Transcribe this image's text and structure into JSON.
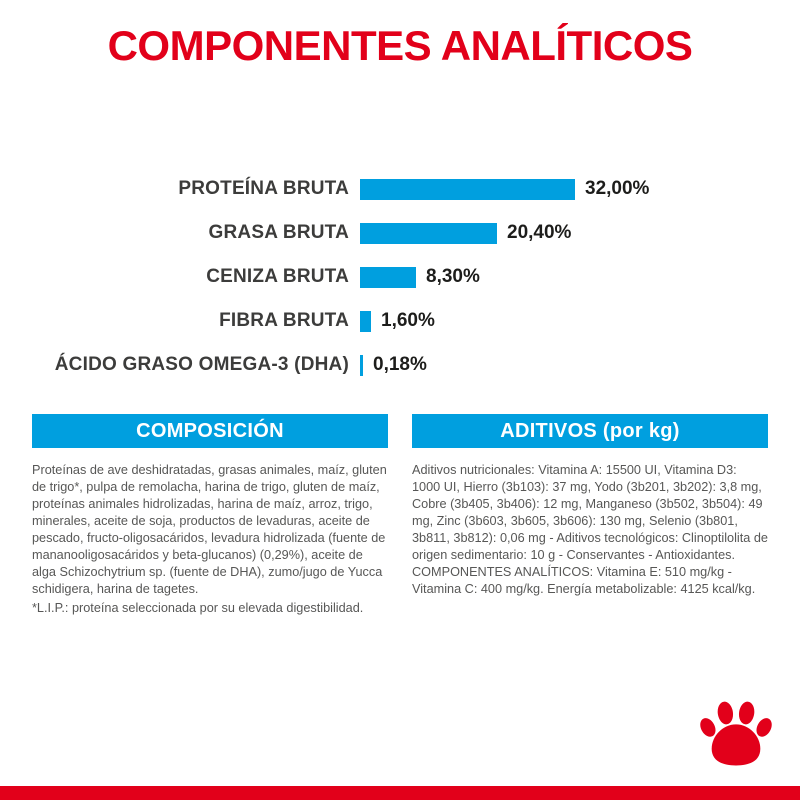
{
  "title": "COMPONENTES ANALÍTICOS",
  "colors": {
    "red": "#E2001A",
    "blue": "#009FDF",
    "label_dark": "#3C3C3B",
    "text_gray": "#575756"
  },
  "chart_data": {
    "type": "bar",
    "orientation": "horizontal",
    "title": "COMPONENTES ANALÍTICOS",
    "categories": [
      "PROTEÍNA BRUTA",
      "GRASA BRUTA",
      "CENIZA BRUTA",
      "FIBRA BRUTA",
      "ÁCIDO GRASO OMEGA-3 (DHA)"
    ],
    "values": [
      32.0,
      20.4,
      8.3,
      1.6,
      0.18
    ],
    "value_labels": [
      "32,00%",
      "20,40%",
      "8,30%",
      "1,60%",
      "0,18%"
    ],
    "unit": "%",
    "xlim": [
      0,
      32
    ],
    "bar_color": "#009FDF",
    "grid": false,
    "legend": false
  },
  "composition": {
    "header": "COMPOSICIÓN",
    "body": "Proteínas de ave deshidratadas, grasas animales, maíz, gluten de trigo*, pulpa de remolacha, harina de trigo, gluten de maíz, proteínas animales hidrolizadas, harina de maíz, arroz, trigo, minerales, aceite de soja, productos de levaduras, aceite de pescado, fructo-oligosacáridos, levadura hidrolizada (fuente de mananooligosacáridos y beta-glucanos) (0,29%), aceite de alga Schizochytrium sp. (fuente de DHA), zumo/jugo de Yucca schidigera, harina de tagetes.",
    "footnote": "*L.I.P.: proteína seleccionada por su elevada digestibilidad."
  },
  "additives": {
    "header": "ADITIVOS (por kg)",
    "body": "Aditivos nutricionales: Vitamina A: 15500 UI, Vitamina D3: 1000 UI, Hierro (3b103): 37 mg, Yodo (3b201, 3b202): 3,8 mg, Cobre (3b405, 3b406): 12 mg, Manganeso (3b502, 3b504): 49 mg, Zinc (3b603, 3b605, 3b606): 130 mg, Selenio (3b801, 3b811, 3b812): 0,06 mg - Aditivos tecnológicos: Clinoptilolita de origen sedimentario: 10 g - Conservantes - Antioxidantes. COMPONENTES ANALÍTICOS: Vitamina E: 510 mg/kg - Vitamina C: 400 mg/kg. Energía metabolizable: 4125 kcal/kg."
  },
  "logo": "royal-canin-paw"
}
